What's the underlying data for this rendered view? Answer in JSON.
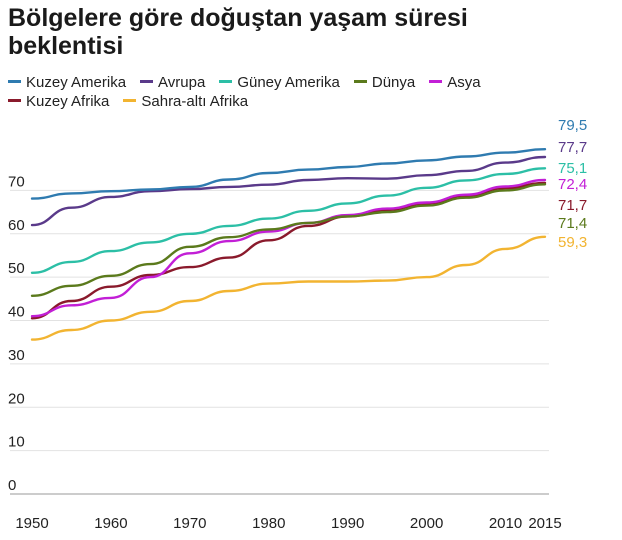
{
  "chart_data": {
    "type": "line",
    "title": "Bölgelere göre doğuştan yaşam süresi beklentisi",
    "xlabel": "",
    "ylabel": "",
    "xlim": [
      1950,
      2015
    ],
    "ylim": [
      0,
      80
    ],
    "x_ticks": [
      "1950",
      "1960",
      "1970",
      "1980",
      "1990",
      "2000",
      "2010",
      "2015"
    ],
    "x_tick_values": [
      1950,
      1960,
      1970,
      1980,
      1990,
      2000,
      2010,
      2015
    ],
    "y_ticks": [
      "0",
      "10",
      "20",
      "30",
      "40",
      "50",
      "60",
      "70"
    ],
    "y_tick_values": [
      0,
      10,
      20,
      30,
      40,
      50,
      60,
      70
    ],
    "grid": "horizontal",
    "legend": "top",
    "x": [
      1950,
      1955,
      1960,
      1965,
      1970,
      1975,
      1980,
      1985,
      1990,
      1995,
      2000,
      2005,
      2010,
      2015
    ],
    "series": [
      {
        "name": "Kuzey Amerika",
        "color": "#2f7bb0",
        "end_label": "79,5",
        "values": [
          68.1,
          69.3,
          69.8,
          70.2,
          70.8,
          72.5,
          74.0,
          74.8,
          75.4,
          76.2,
          76.9,
          77.8,
          78.7,
          79.5
        ]
      },
      {
        "name": "Avrupa",
        "color": "#5a3a8a",
        "end_label": "77,7",
        "values": [
          62.0,
          66.0,
          68.5,
          69.8,
          70.3,
          70.8,
          71.3,
          72.4,
          72.8,
          72.7,
          73.5,
          74.5,
          76.4,
          77.7
        ]
      },
      {
        "name": "Güney Amerika",
        "color": "#2cbfa6",
        "end_label": "75,1",
        "values": [
          51.0,
          53.5,
          56.0,
          58.0,
          60.0,
          61.8,
          63.5,
          65.3,
          67.0,
          68.8,
          70.6,
          72.3,
          73.8,
          75.1
        ]
      },
      {
        "name": "Dünya",
        "color": "#5b7a1c",
        "end_label": "71,4",
        "values": [
          45.7,
          48.0,
          50.3,
          53.0,
          57.0,
          59.2,
          61.0,
          62.5,
          64.0,
          65.0,
          66.5,
          68.3,
          70.0,
          71.4
        ]
      },
      {
        "name": "Asya",
        "color": "#c21fd6",
        "end_label": "72,4",
        "values": [
          41.0,
          43.5,
          45.2,
          50.0,
          55.5,
          58.3,
          60.5,
          62.5,
          64.3,
          65.8,
          67.2,
          69.0,
          70.9,
          72.4
        ]
      },
      {
        "name": "Kuzey Afrika",
        "color": "#8a1a2c",
        "end_label": "71,7",
        "values": [
          40.5,
          44.5,
          47.8,
          50.5,
          52.3,
          54.5,
          58.5,
          61.8,
          64.0,
          65.5,
          67.0,
          68.8,
          70.5,
          71.7
        ]
      },
      {
        "name": "Sahra-altı Afrika",
        "color": "#f2b431",
        "end_label": "59,3",
        "values": [
          35.6,
          37.8,
          40.0,
          42.0,
          44.5,
          46.8,
          48.5,
          49.0,
          49.0,
          49.2,
          50.0,
          52.8,
          56.5,
          59.3
        ]
      }
    ]
  }
}
